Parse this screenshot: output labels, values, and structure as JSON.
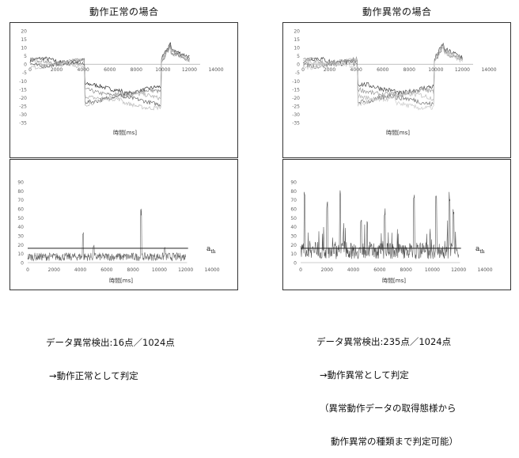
{
  "left": {
    "title": "動作正常の場合",
    "top_chart": {
      "y_ticks": [
        "20",
        "15",
        "10",
        "5",
        "0",
        "-5",
        "-10",
        "-15",
        "-20",
        "-25",
        "-30",
        "-35"
      ],
      "x_ticks": [
        "0",
        "2000",
        "4000",
        "6000",
        "8000",
        "10000",
        "12000",
        "14000"
      ],
      "xlabel": "時間[ms]"
    },
    "bottom_chart": {
      "y_ticks": [
        "90",
        "80",
        "70",
        "60",
        "50",
        "40",
        "30",
        "20",
        "10",
        "0"
      ],
      "x_ticks": [
        "0",
        "2000",
        "4000",
        "6000",
        "8000",
        "10000",
        "12000",
        "14000"
      ],
      "xlabel": "時間[ms]",
      "threshold_label": "a",
      "threshold_sub": "th"
    },
    "caption": [
      "データ異常検出:16点／1024点",
      "→動作正常として判定"
    ]
  },
  "right": {
    "title": "動作異常の場合",
    "top_chart": {
      "y_ticks": [
        "20",
        "15",
        "10",
        "5",
        "0",
        "-5",
        "-10",
        "-15",
        "-20",
        "-25",
        "-30",
        "-35"
      ],
      "x_ticks": [
        "0",
        "2000",
        "4000",
        "6000",
        "8000",
        "10000",
        "12000",
        "14000"
      ],
      "xlabel": "時間[ms]"
    },
    "bottom_chart": {
      "y_ticks": [
        "90",
        "80",
        "70",
        "60",
        "50",
        "40",
        "30",
        "20",
        "10",
        "0"
      ],
      "x_ticks": [
        "0",
        "2000",
        "4000",
        "6000",
        "8000",
        "10000",
        "12000",
        "14000"
      ],
      "xlabel": "時間[ms]",
      "threshold_label": "a",
      "threshold_sub": "th"
    },
    "caption": [
      "データ異常検出:235点／1024点",
      "→動作異常として判定",
      "（異常動作データの取得態様から",
      "動作異常の種類まで判定可能）"
    ]
  },
  "chart_data": [
    {
      "type": "line",
      "panel": "left-top",
      "xlim": [
        0,
        14000
      ],
      "ylim": [
        -35,
        20
      ],
      "series": [
        {
          "x": [
            0,
            2000,
            4000,
            4200,
            6000,
            8000,
            9800,
            10000,
            11000,
            12000
          ],
          "values": [
            3,
            2,
            1,
            -15,
            -17,
            -18,
            -17,
            5,
            10,
            4
          ]
        }
      ]
    },
    {
      "type": "line",
      "panel": "left-bottom",
      "xlim": [
        0,
        14000
      ],
      "ylim": [
        0,
        90
      ],
      "threshold": 16,
      "spikes": [
        [
          4200,
          35
        ],
        [
          8600,
          62
        ],
        [
          5000,
          20
        ],
        [
          10400,
          17
        ]
      ]
    },
    {
      "type": "line",
      "panel": "right-top",
      "xlim": [
        0,
        14000
      ],
      "ylim": [
        -35,
        20
      ],
      "series": [
        {
          "x": [
            0,
            2000,
            4000,
            4200,
            6000,
            8000,
            9800,
            10000,
            11000,
            12000
          ],
          "values": [
            3,
            2,
            1,
            -15,
            -17,
            -18,
            -17,
            5,
            10,
            4
          ]
        }
      ]
    },
    {
      "type": "line",
      "panel": "right-bottom",
      "xlim": [
        0,
        14000
      ],
      "ylim": [
        0,
        90
      ],
      "threshold": 16,
      "spikes": [
        [
          300,
          88
        ],
        [
          2000,
          70
        ],
        [
          3000,
          82
        ],
        [
          4600,
          50
        ],
        [
          6400,
          62
        ],
        [
          8600,
          82
        ],
        [
          10300,
          82
        ],
        [
          11300,
          80
        ],
        [
          11600,
          60
        ]
      ]
    }
  ]
}
